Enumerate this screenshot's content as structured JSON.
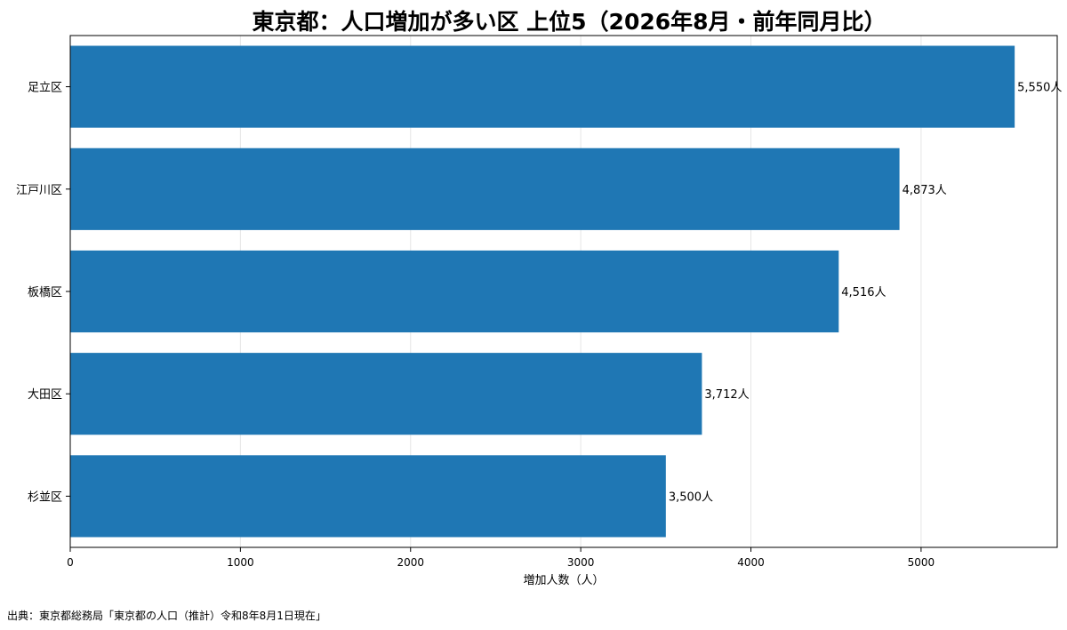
{
  "chart_data": {
    "type": "bar",
    "orientation": "horizontal",
    "title": "東京都：人口増加が多い区 上位5（2026年8月・前年同月比）",
    "xlabel": "増加人数（人）",
    "ylabel": "",
    "categories": [
      "足立区",
      "江戸川区",
      "板橋区",
      "大田区",
      "杉並区"
    ],
    "values": [
      5550,
      4873,
      4516,
      3712,
      3500
    ],
    "value_labels": [
      "5,550人",
      "4,873人",
      "4,516人",
      "3,712人",
      "3,500人"
    ],
    "xlim": [
      0,
      5800
    ],
    "xticks": [
      0,
      1000,
      2000,
      3000,
      4000,
      5000
    ],
    "xtick_labels": [
      "0",
      "1000",
      "2000",
      "3000",
      "4000",
      "5000"
    ],
    "grid": "vertical",
    "bar_color": "#1f77b4"
  },
  "footer": {
    "source": "出典：東京都総務局「東京都の人口（推計）令和8年8月1日現在」"
  }
}
